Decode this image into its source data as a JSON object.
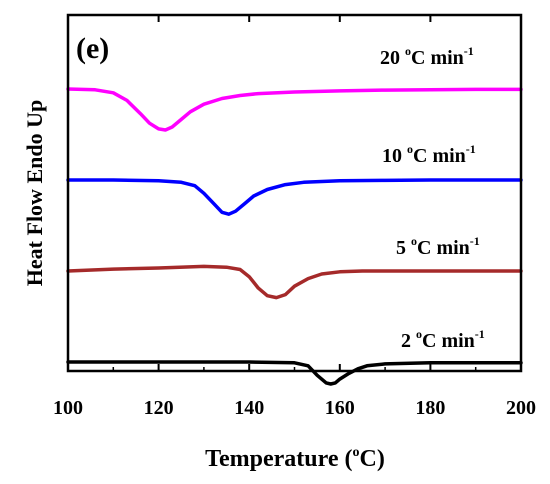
{
  "chart_data": {
    "type": "line",
    "panel_label": "(e)",
    "xlabel": "Temperature",
    "xlabel_unit": "C",
    "xlabel_unit_super": "o",
    "ylabel": "Heat Flow Endo Up",
    "xlim": [
      100,
      200
    ],
    "xticks": [
      "100",
      "120",
      "140",
      "160",
      "180",
      "200"
    ],
    "grid": false,
    "series": [
      {
        "name_prefix": "20 ",
        "name_super": "o",
        "name_mid": "C min",
        "name_super2": "-1",
        "color": "#ff00ff",
        "x": [
          100,
          106,
          110,
          113,
          116,
          118,
          120,
          121.5,
          123,
          125,
          127,
          130,
          134,
          138,
          142,
          150,
          160,
          170,
          180,
          190,
          200
        ],
        "y": [
          0,
          -0.02,
          -0.1,
          -0.3,
          -0.65,
          -0.9,
          -1.05,
          -1.08,
          -1.0,
          -0.8,
          -0.6,
          -0.4,
          -0.25,
          -0.17,
          -0.12,
          -0.08,
          -0.05,
          -0.03,
          -0.02,
          -0.01,
          -0.01
        ]
      },
      {
        "name_prefix": "10 ",
        "name_super": "o",
        "name_mid": "C min",
        "name_super2": "-1",
        "color": "#0000ff",
        "x": [
          100,
          110,
          120,
          125,
          128,
          130,
          132,
          134,
          135.5,
          137,
          139,
          141,
          144,
          148,
          152,
          160,
          170,
          180,
          190,
          200
        ],
        "y": [
          0,
          0,
          -0.02,
          -0.06,
          -0.15,
          -0.35,
          -0.6,
          -0.85,
          -0.9,
          -0.82,
          -0.62,
          -0.42,
          -0.25,
          -0.12,
          -0.06,
          -0.02,
          -0.01,
          0,
          0,
          0
        ]
      },
      {
        "name_prefix": "5 ",
        "name_super": "o",
        "name_mid": "C min",
        "name_super2": "-1",
        "color": "#a52a2a",
        "x": [
          100,
          110,
          120,
          130,
          135,
          138,
          140,
          142,
          144,
          146,
          148,
          150,
          153,
          156,
          160,
          165,
          170,
          180,
          190,
          200
        ],
        "y": [
          0,
          0.05,
          0.08,
          0.12,
          0.1,
          0.04,
          -0.15,
          -0.45,
          -0.65,
          -0.7,
          -0.62,
          -0.4,
          -0.2,
          -0.08,
          -0.02,
          0,
          0,
          0,
          0,
          0
        ]
      },
      {
        "name_prefix": "2 ",
        "name_super": "o",
        "name_mid": "C min",
        "name_super2": "-1",
        "color": "#000000",
        "x": [
          100,
          120,
          140,
          150,
          153,
          155,
          157,
          158,
          159,
          160,
          162,
          164,
          166,
          170,
          180,
          200
        ],
        "y": [
          0,
          0,
          0,
          -0.02,
          -0.1,
          -0.35,
          -0.55,
          -0.58,
          -0.55,
          -0.45,
          -0.3,
          -0.18,
          -0.1,
          -0.05,
          -0.02,
          -0.02
        ]
      }
    ]
  }
}
